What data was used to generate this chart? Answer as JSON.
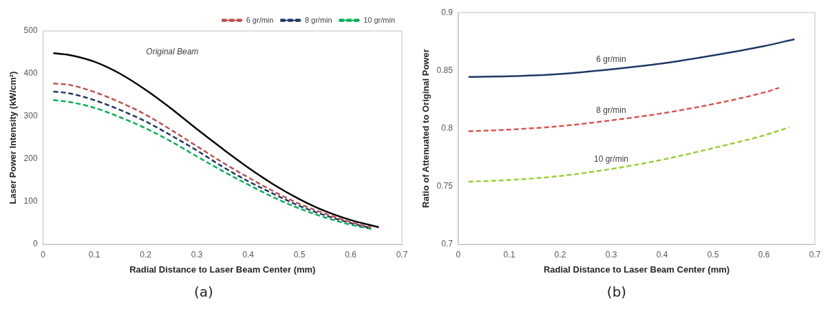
{
  "chart_data": [
    {
      "type": "line",
      "xlabel": "Radial Distance to Laser Beam Center (mm)",
      "ylabel": "Laser Power Intensity (kW/cm²)",
      "xlim": [
        0,
        0.7
      ],
      "xticks": [
        0,
        0.1,
        0.2,
        0.3,
        0.4,
        0.5,
        0.6,
        0.7
      ],
      "ylim": [
        0,
        500
      ],
      "yticks": [
        0,
        100,
        200,
        300,
        400,
        500
      ],
      "legend": "top right",
      "title": "(a)",
      "annotations": [
        "Original Beam"
      ],
      "series": [
        {
          "color": "#000000",
          "line_style": "solid",
          "x": [
            0.02,
            0.05,
            0.1,
            0.15,
            0.2,
            0.25,
            0.3,
            0.35,
            0.4,
            0.45,
            0.5,
            0.55,
            0.6,
            0.655
          ],
          "values": [
            448,
            444,
            428,
            400,
            362,
            318,
            270,
            224,
            180,
            140,
            106,
            78,
            57,
            40
          ]
        },
        {
          "name": "6 gr/min",
          "color": "#c0504d",
          "line_style": "dashed",
          "x": [
            0.02,
            0.05,
            0.1,
            0.15,
            0.2,
            0.25,
            0.3,
            0.35,
            0.4,
            0.45,
            0.5,
            0.55,
            0.6,
            0.64
          ],
          "values": [
            377,
            374,
            357,
            333,
            304,
            268,
            230,
            192,
            157,
            124,
            95,
            72,
            52,
            40
          ]
        },
        {
          "name": "8 gr/min",
          "color": "#1f3864",
          "line_style": "dashed",
          "x": [
            0.02,
            0.05,
            0.1,
            0.15,
            0.2,
            0.25,
            0.3,
            0.35,
            0.4,
            0.45,
            0.5,
            0.55,
            0.6,
            0.64
          ],
          "values": [
            358,
            354,
            338,
            315,
            288,
            255,
            220,
            182,
            148,
            118,
            90,
            68,
            50,
            38
          ]
        },
        {
          "name": "10 gr/min",
          "color": "#00b050",
          "line_style": "dashed",
          "x": [
            0.02,
            0.05,
            0.1,
            0.15,
            0.2,
            0.25,
            0.3,
            0.35,
            0.4,
            0.45,
            0.5,
            0.55,
            0.6,
            0.64
          ],
          "values": [
            338,
            334,
            320,
            298,
            272,
            241,
            206,
            172,
            140,
            110,
            84,
            63,
            46,
            36
          ]
        }
      ]
    },
    {
      "type": "line",
      "xlabel": "Radial Distance to Laser Beam Center (mm)",
      "ylabel": "Ratio of Attenuated to Original Power",
      "xlim": [
        0,
        0.7
      ],
      "xticks": [
        0,
        0.1,
        0.2,
        0.3,
        0.4,
        0.5,
        0.6,
        0.7
      ],
      "ylim": [
        0.7,
        0.9
      ],
      "yticks": [
        0.7,
        0.75,
        0.8,
        0.85,
        0.9
      ],
      "title": "(b)",
      "series": [
        {
          "name": "6 gr/min",
          "color": "#1f3864",
          "line_style": "solid",
          "x": [
            0.02,
            0.1,
            0.2,
            0.3,
            0.4,
            0.5,
            0.6,
            0.66
          ],
          "values": [
            0.8445,
            0.845,
            0.847,
            0.851,
            0.856,
            0.863,
            0.871,
            0.877
          ]
        },
        {
          "name": "8 gr/min",
          "color": "#d9534f",
          "line_style": "dashed",
          "x": [
            0.02,
            0.1,
            0.2,
            0.3,
            0.4,
            0.5,
            0.6,
            0.63
          ],
          "values": [
            0.7975,
            0.799,
            0.802,
            0.807,
            0.813,
            0.821,
            0.831,
            0.835
          ]
        },
        {
          "name": "10 gr/min",
          "color": "#9acd32",
          "line_style": "dashed",
          "x": [
            0.02,
            0.1,
            0.2,
            0.3,
            0.4,
            0.5,
            0.6,
            0.65
          ],
          "values": [
            0.754,
            0.7555,
            0.759,
            0.765,
            0.773,
            0.783,
            0.794,
            0.801
          ]
        }
      ]
    }
  ]
}
